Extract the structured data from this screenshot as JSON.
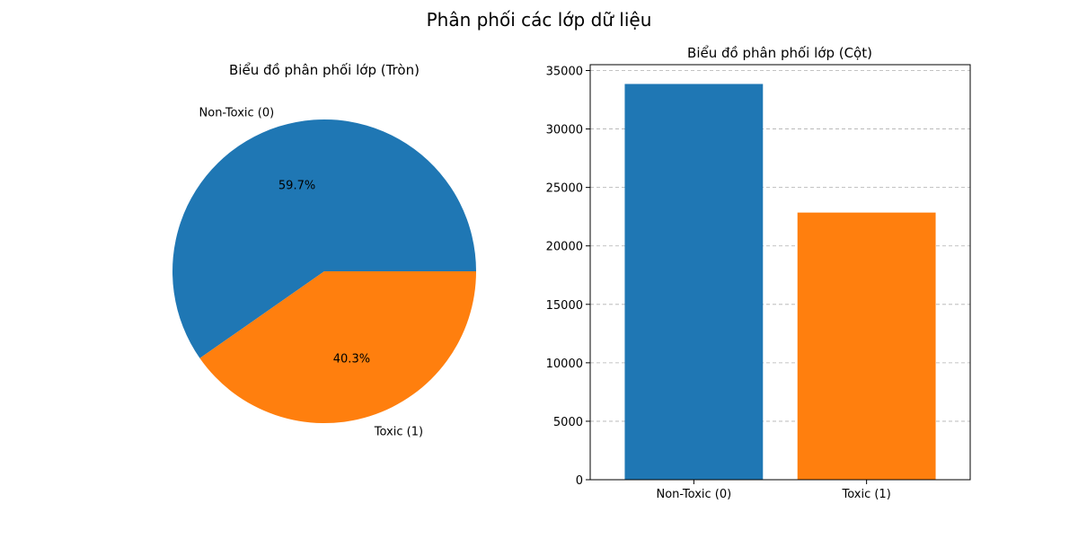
{
  "figure": {
    "title": "Phân phối các lớp dữ liệu"
  },
  "chart_data": [
    {
      "type": "pie",
      "title": "Biểu đồ phân phối lớp (Tròn)",
      "categories": [
        "Non-Toxic (0)",
        "Toxic (1)"
      ],
      "values": [
        59.7,
        40.3
      ],
      "value_labels": [
        "59.7%",
        "40.3%"
      ],
      "colors": [
        "#1f77b4",
        "#ff7f0e"
      ],
      "start_angle": "0 (east), counter-clockwise"
    },
    {
      "type": "bar",
      "title": "Biểu đồ phân phối lớp (Cột)",
      "categories": [
        "Non-Toxic (0)",
        "Toxic (1)"
      ],
      "values": [
        33850,
        22850
      ],
      "colors": [
        "#1f77b4",
        "#ff7f0e"
      ],
      "xlabel": "",
      "ylabel": "",
      "ylim": [
        0,
        35500
      ],
      "yticks": [
        0,
        5000,
        10000,
        15000,
        20000,
        25000,
        30000,
        35000
      ],
      "grid": "y-axis, dashed"
    }
  ]
}
